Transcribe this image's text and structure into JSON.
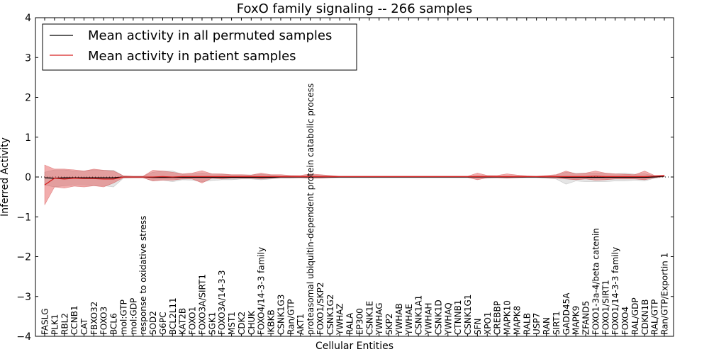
{
  "chart_data": {
    "type": "line",
    "title": "FoxO family signaling -- 266 samples",
    "xlabel": "Cellular Entities",
    "ylabel": "Inferred Activity",
    "ylim": [
      -4,
      4
    ],
    "yticks": [
      "−4",
      "−3",
      "−2",
      "−1",
      "0",
      "1",
      "2",
      "3",
      "4"
    ],
    "ytick_values": [
      -4,
      -3,
      -2,
      -1,
      0,
      1,
      2,
      3,
      4
    ],
    "legend": {
      "position": "top-left",
      "entries": [
        {
          "label": "Mean activity in all permuted samples",
          "color": "#000000"
        },
        {
          "label": "Mean activity in patient samples",
          "color": "#d62020"
        }
      ]
    },
    "categories": [
      "FASLG",
      "PLK1",
      "RBL2",
      "CCNB1",
      "CAT",
      "FBXO32",
      "FOXO3",
      "BCL6",
      "mol:GTP",
      "mol:GDP",
      "response to oxidative stress",
      "SOD2",
      "G6PC",
      "BCL2L11",
      "KAT2B",
      "FOXO1",
      "FOXO3A/SIRT1",
      "SGK1",
      "FOXO3A/14-3-3",
      "MST1",
      "CDK2",
      "CHUK",
      "FOXO4/14-3-3 family",
      "IKBKB",
      "CSNK1G3",
      "Ran/GTP",
      "AKT1",
      "proteasomal ubiquitin-dependent protein catabolic process",
      "FOXO1/SKP2",
      "CSNK1G2",
      "YWHAZ",
      "RALA",
      "EP300",
      "CSNK1E",
      "YWHAG",
      "SKP2",
      "YWHAB",
      "YWHAE",
      "CSNK1A1",
      "YWHAH",
      "CSNK1D",
      "YWHAQ",
      "CTNNB1",
      "CSNK1G1",
      "SFN",
      "XPO1",
      "CREBBP",
      "MAPK10",
      "MAPK8",
      "RALB",
      "USP7",
      "RAN",
      "SIRT1",
      "GADD45A",
      "MAPK9",
      "ZFAND5",
      "FOXO1-3a-4/beta catenin",
      "FOXO1/SIRT1",
      "FOXO1/14-3-3 family",
      "FOXO4",
      "RAL/GDP",
      "CDKN1B",
      "RAL/GTP",
      "Ran/GTP/Exportin 1"
    ],
    "series": [
      {
        "name": "Mean activity in all permuted samples",
        "color": "#000000",
        "values": [
          -0.02,
          -0.03,
          -0.02,
          -0.02,
          -0.02,
          -0.02,
          -0.02,
          -0.02,
          0.0,
          0.0,
          0.0,
          -0.01,
          -0.01,
          -0.01,
          -0.01,
          -0.01,
          -0.01,
          -0.01,
          -0.01,
          -0.01,
          -0.01,
          -0.01,
          -0.01,
          -0.01,
          0.0,
          0.0,
          0.0,
          0.0,
          0.0,
          0.0,
          0.0,
          0.0,
          0.0,
          0.0,
          0.0,
          0.0,
          0.0,
          0.0,
          0.0,
          0.0,
          0.0,
          0.0,
          0.0,
          0.0,
          0.0,
          0.0,
          0.0,
          0.0,
          0.0,
          0.0,
          0.0,
          0.0,
          0.0,
          -0.01,
          -0.01,
          -0.01,
          -0.01,
          -0.01,
          -0.01,
          -0.01,
          -0.01,
          -0.01,
          0.0,
          0.02
        ],
        "lower": [
          -0.2,
          -0.25,
          -0.22,
          -0.2,
          -0.2,
          -0.22,
          -0.22,
          -0.25,
          -0.03,
          -0.02,
          -0.02,
          -0.1,
          -0.08,
          -0.12,
          -0.07,
          -0.08,
          -0.12,
          -0.09,
          -0.07,
          -0.07,
          -0.05,
          -0.05,
          -0.07,
          -0.05,
          -0.03,
          -0.03,
          -0.02,
          -0.03,
          -0.03,
          -0.02,
          -0.02,
          -0.02,
          -0.02,
          -0.02,
          -0.02,
          -0.02,
          -0.02,
          -0.02,
          -0.02,
          -0.02,
          -0.02,
          -0.02,
          -0.02,
          -0.02,
          -0.03,
          -0.03,
          -0.02,
          -0.02,
          -0.02,
          -0.02,
          -0.02,
          -0.03,
          -0.05,
          -0.18,
          -0.1,
          -0.12,
          -0.12,
          -0.12,
          -0.1,
          -0.1,
          -0.08,
          -0.1,
          -0.03,
          0.0
        ],
        "upper": [
          0.12,
          0.18,
          0.18,
          0.15,
          0.15,
          0.18,
          0.17,
          0.17,
          0.03,
          0.02,
          0.02,
          0.12,
          0.15,
          0.15,
          0.07,
          0.08,
          0.1,
          0.08,
          0.07,
          0.05,
          0.05,
          0.05,
          0.07,
          0.05,
          0.03,
          0.03,
          0.02,
          0.05,
          0.05,
          0.03,
          0.02,
          0.02,
          0.02,
          0.02,
          0.02,
          0.02,
          0.02,
          0.02,
          0.02,
          0.02,
          0.02,
          0.02,
          0.02,
          0.02,
          0.03,
          0.03,
          0.02,
          0.02,
          0.02,
          0.02,
          0.02,
          0.02,
          0.05,
          0.12,
          0.1,
          0.1,
          0.1,
          0.1,
          0.08,
          0.1,
          0.07,
          0.08,
          0.03,
          0.03
        ]
      },
      {
        "name": "Mean activity in patient samples",
        "color": "#d62020",
        "values": [
          -0.2,
          -0.03,
          -0.05,
          -0.03,
          -0.04,
          -0.04,
          -0.05,
          -0.05,
          0.0,
          0.0,
          0.0,
          0.0,
          0.01,
          0.0,
          0.01,
          0.01,
          0.01,
          0.01,
          0.01,
          0.01,
          0.01,
          0.01,
          0.01,
          0.01,
          0.01,
          0.01,
          0.01,
          0.01,
          0.01,
          0.01,
          0.01,
          0.01,
          0.01,
          0.01,
          0.01,
          0.01,
          0.01,
          0.01,
          0.01,
          0.01,
          0.01,
          0.01,
          0.01,
          0.01,
          0.01,
          0.01,
          0.01,
          0.01,
          0.01,
          0.01,
          0.01,
          0.01,
          0.01,
          0.01,
          0.01,
          0.01,
          0.02,
          0.01,
          0.01,
          0.01,
          0.01,
          0.01,
          0.02,
          0.03
        ],
        "lower": [
          -0.7,
          -0.25,
          -0.28,
          -0.23,
          -0.25,
          -0.22,
          -0.25,
          -0.15,
          -0.02,
          -0.02,
          -0.02,
          -0.1,
          -0.08,
          -0.08,
          -0.05,
          -0.05,
          -0.15,
          -0.03,
          -0.05,
          -0.03,
          -0.03,
          -0.03,
          -0.05,
          -0.03,
          -0.02,
          -0.02,
          -0.02,
          -0.03,
          -0.03,
          -0.02,
          -0.01,
          -0.01,
          -0.01,
          -0.01,
          -0.01,
          -0.01,
          -0.01,
          -0.01,
          -0.01,
          -0.01,
          -0.01,
          -0.01,
          -0.01,
          -0.01,
          -0.07,
          -0.02,
          -0.02,
          -0.03,
          -0.02,
          -0.01,
          -0.01,
          -0.02,
          -0.03,
          -0.05,
          -0.07,
          -0.05,
          -0.08,
          -0.07,
          -0.05,
          -0.05,
          -0.05,
          -0.07,
          -0.02,
          0.01
        ],
        "upper": [
          0.3,
          0.2,
          0.2,
          0.18,
          0.15,
          0.2,
          0.17,
          0.15,
          0.03,
          0.02,
          0.02,
          0.17,
          0.15,
          0.12,
          0.08,
          0.1,
          0.16,
          0.08,
          0.08,
          0.06,
          0.06,
          0.05,
          0.1,
          0.06,
          0.06,
          0.04,
          0.04,
          0.08,
          0.06,
          0.04,
          0.02,
          0.02,
          0.02,
          0.02,
          0.02,
          0.02,
          0.02,
          0.02,
          0.02,
          0.02,
          0.02,
          0.02,
          0.02,
          0.02,
          0.1,
          0.04,
          0.04,
          0.08,
          0.05,
          0.03,
          0.02,
          0.04,
          0.06,
          0.15,
          0.08,
          0.1,
          0.15,
          0.1,
          0.08,
          0.07,
          0.06,
          0.15,
          0.04,
          0.05
        ]
      }
    ]
  }
}
